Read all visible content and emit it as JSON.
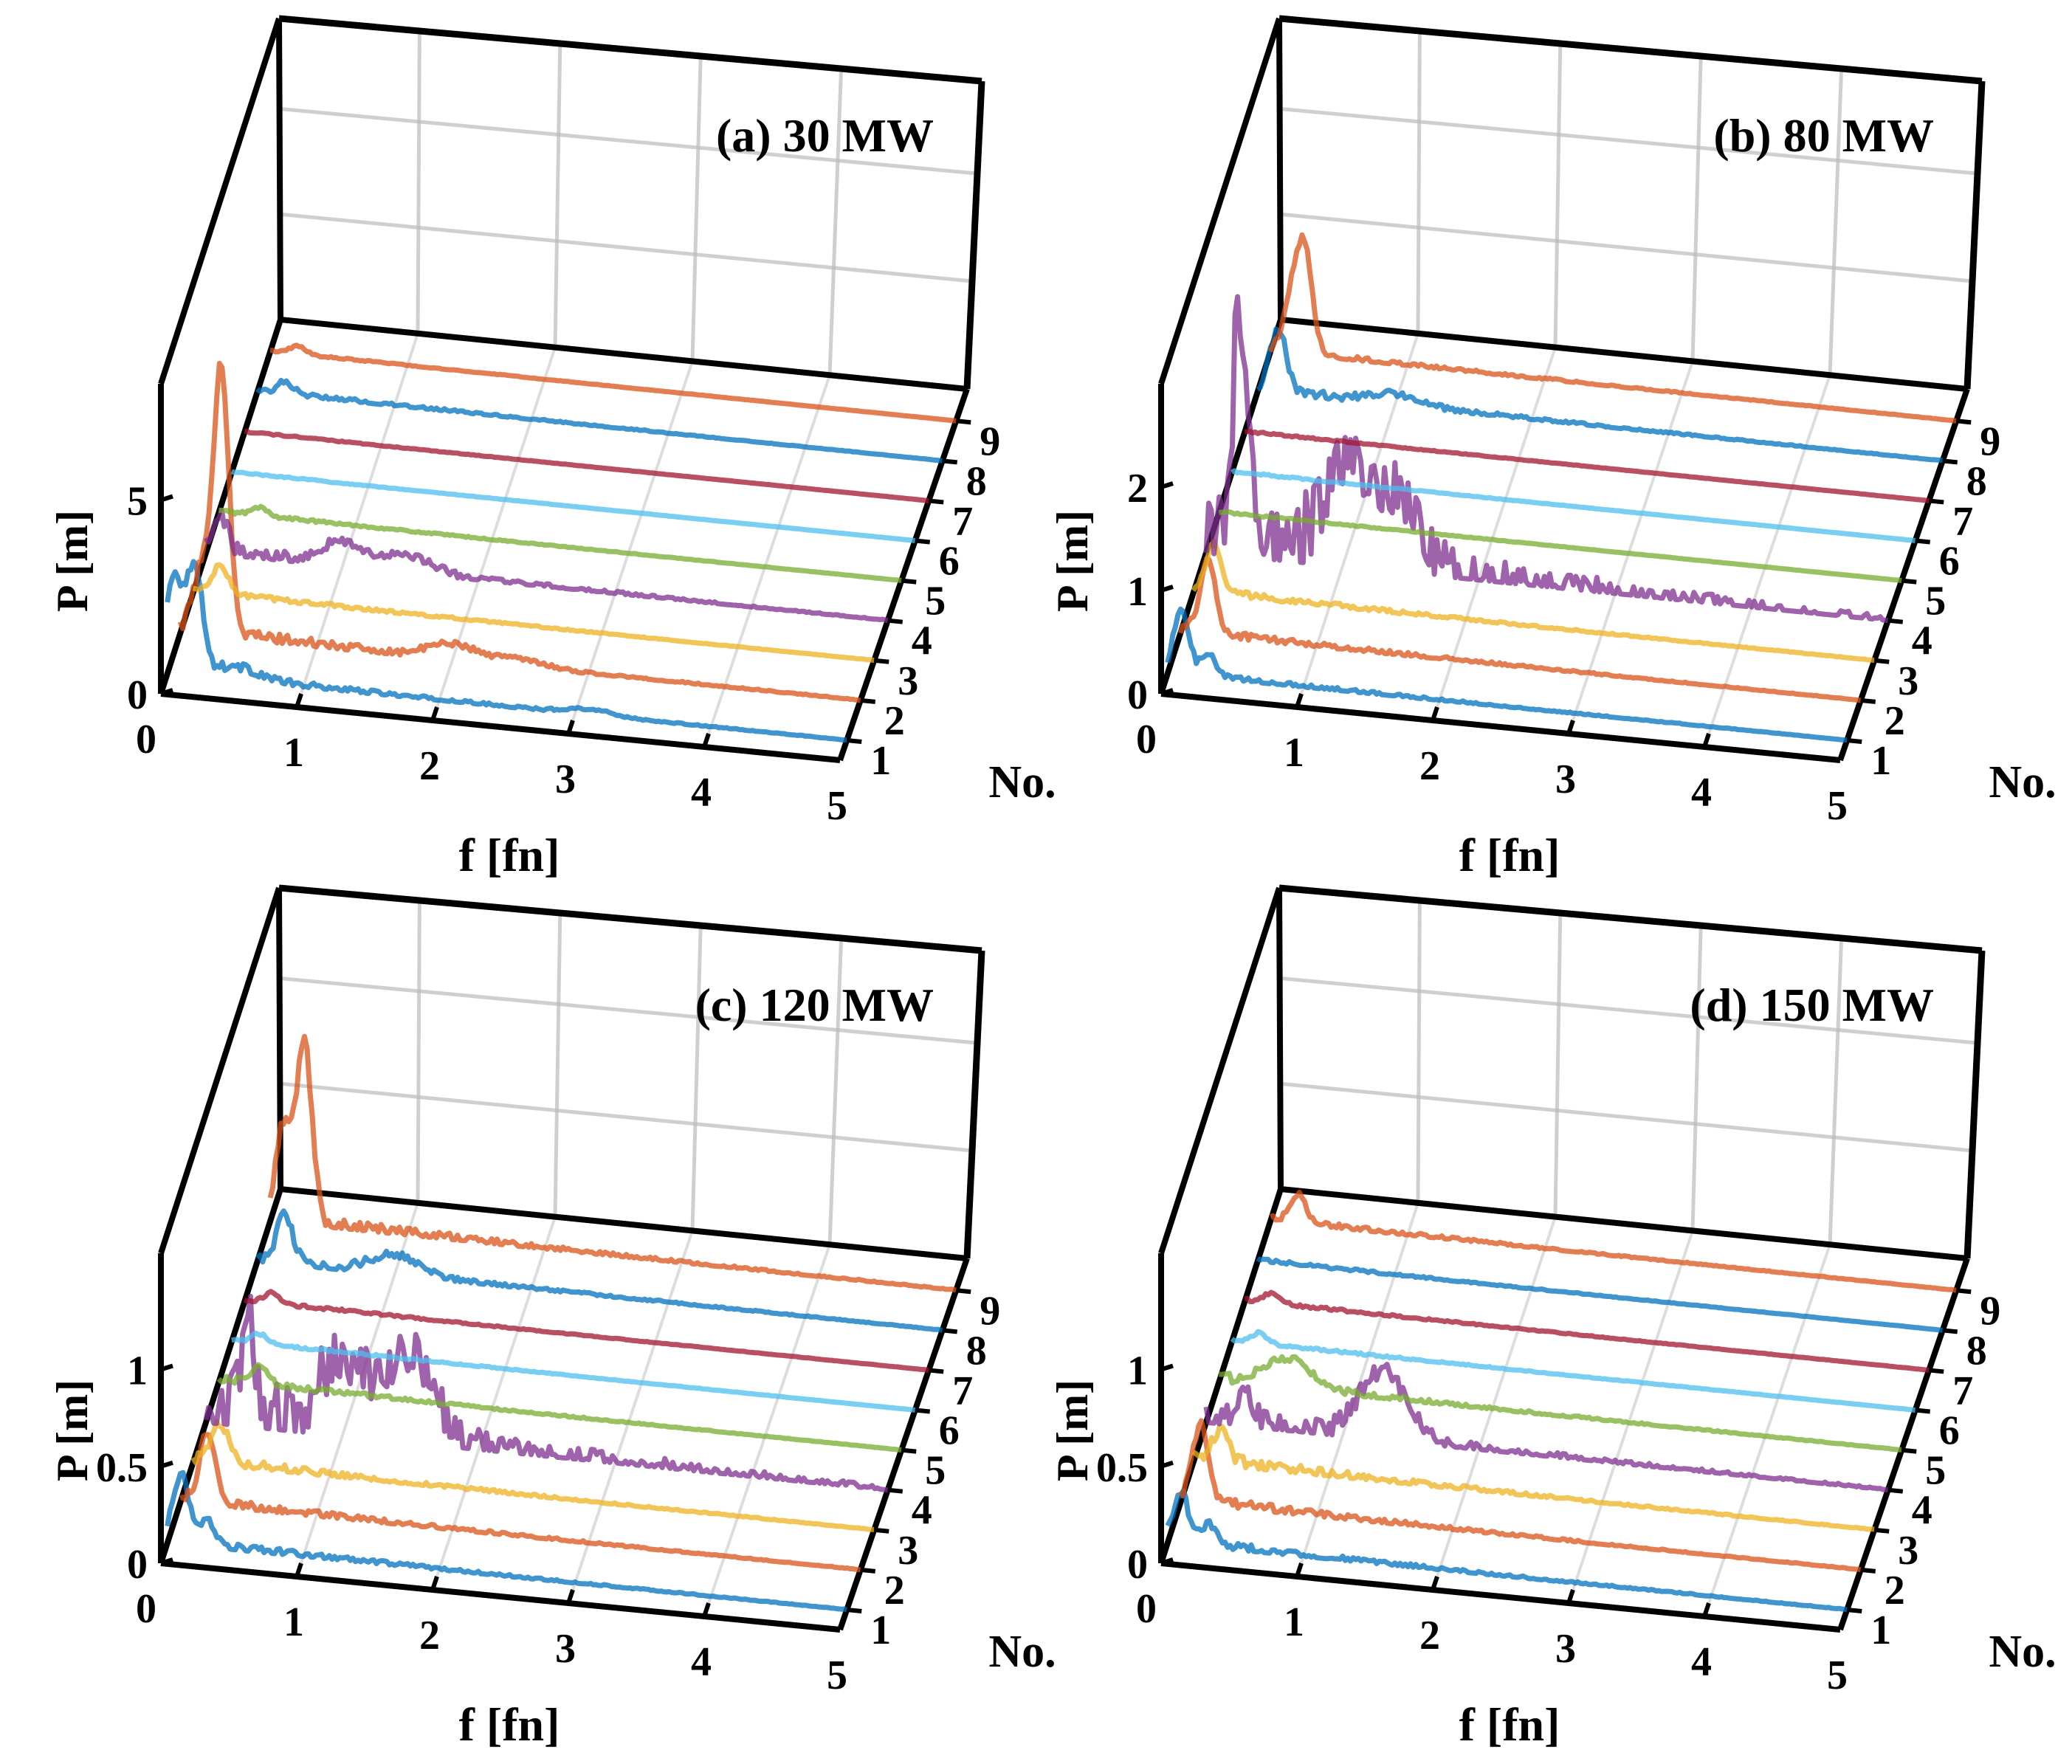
{
  "figure": {
    "colors": {
      "blue": "#0072BD",
      "orange": "#D95319",
      "yellow": "#EDB120",
      "purple": "#7E2F8E",
      "green": "#77AC30",
      "light_blue": "#4DBEEE",
      "crimson": "#A2142F",
      "box": "#000000",
      "grid": "#BBBBBB"
    }
  },
  "chart_data": [
    {
      "type": "line",
      "title": "(a) 30 MW",
      "xlabel": "f [fn]",
      "ylabel": "P [m]",
      "zlabel": "No.",
      "xlim": [
        0,
        5
      ],
      "zlim": [
        0,
        8
      ],
      "x_ticks": [
        "0",
        "1",
        "2",
        "3",
        "4",
        "5"
      ],
      "y_ticks": [
        "1",
        "2",
        "3",
        "4",
        "5",
        "6",
        "7",
        "8",
        "9"
      ],
      "z_ticks": [
        {
          "value": 0,
          "label": "0"
        },
        {
          "value": 5,
          "label": "5"
        }
      ],
      "series": [
        {
          "name": "1",
          "color": "blue",
          "peaks": [
            [
              0.05,
              2.5
            ],
            [
              0.2,
              2.8
            ],
            [
              0.5,
              0.3
            ],
            [
              3.1,
              0.15
            ]
          ],
          "base": 0.1,
          "noise": 0.15
        },
        {
          "name": "2",
          "color": "orange",
          "peaks": [
            [
              0.3,
              7.0
            ],
            [
              0.15,
              1.5
            ],
            [
              2.0,
              0.4
            ],
            [
              2.5,
              0.2
            ]
          ],
          "base": 0.2,
          "noise": 0.2
        },
        {
          "name": "3",
          "color": "yellow",
          "peaks": [
            [
              0.2,
              0.7
            ]
          ],
          "base": 0.1,
          "noise": 0.08
        },
        {
          "name": "4",
          "color": "purple",
          "peaks": [
            [
              0.1,
              1.0
            ],
            [
              1.0,
              0.6
            ],
            [
              1.5,
              0.4
            ]
          ],
          "base": 0.1,
          "noise": 0.25
        },
        {
          "name": "5",
          "color": "green",
          "peaks": [
            [
              0.3,
              0.2
            ]
          ],
          "base": 0.05,
          "noise": 0.05
        },
        {
          "name": "6",
          "color": "light_blue",
          "peaks": [],
          "base": 0.02,
          "noise": 0.02
        },
        {
          "name": "7",
          "color": "crimson",
          "peaks": [],
          "base": 0.02,
          "noise": 0.02
        },
        {
          "name": "8",
          "color": "blue",
          "peaks": [
            [
              0.2,
              0.3
            ]
          ],
          "base": 0.05,
          "noise": 0.08
        },
        {
          "name": "9",
          "color": "orange",
          "peaks": [
            [
              0.2,
              0.2
            ]
          ],
          "base": 0.02,
          "noise": 0.03
        }
      ]
    },
    {
      "type": "line",
      "title": "(b) 80 MW",
      "xlabel": "f [fn]",
      "ylabel": "P [m]",
      "zlabel": "No.",
      "xlim": [
        0,
        5
      ],
      "zlim": [
        0,
        3
      ],
      "x_ticks": [
        "0",
        "1",
        "2",
        "3",
        "4",
        "5"
      ],
      "y_ticks": [
        "1",
        "2",
        "3",
        "4",
        "5",
        "6",
        "7",
        "8",
        "9"
      ],
      "z_ticks": [
        {
          "value": 0,
          "label": "0"
        },
        {
          "value": 1,
          "label": "1"
        },
        {
          "value": 2,
          "label": "2"
        }
      ],
      "series": [
        {
          "name": "1",
          "color": "blue",
          "peaks": [
            [
              0.1,
              0.6
            ],
            [
              0.3,
              0.2
            ]
          ],
          "base": 0.02,
          "noise": 0.04
        },
        {
          "name": "2",
          "color": "orange",
          "peaks": [
            [
              0.2,
              0.7
            ]
          ],
          "base": 0.05,
          "noise": 0.05
        },
        {
          "name": "3",
          "color": "yellow",
          "peaks": [
            [
              0.15,
              0.45
            ]
          ],
          "base": 0.05,
          "noise": 0.04
        },
        {
          "name": "4",
          "color": "purple",
          "peaks": [
            [
              0.25,
              2.3
            ],
            [
              1.0,
              0.9
            ],
            [
              1.4,
              0.7
            ]
          ],
          "base": 0.1,
          "noise": 0.55
        },
        {
          "name": "5",
          "color": "green",
          "peaks": [],
          "base": 0.01,
          "noise": 0.01
        },
        {
          "name": "6",
          "color": "light_blue",
          "peaks": [],
          "base": 0.01,
          "noise": 0.01
        },
        {
          "name": "7",
          "color": "crimson",
          "peaks": [],
          "base": 0.01,
          "noise": 0.01
        },
        {
          "name": "8",
          "color": "blue",
          "peaks": [
            [
              0.15,
              0.6
            ],
            [
              1.0,
              0.1
            ]
          ],
          "base": 0.05,
          "noise": 0.05
        },
        {
          "name": "9",
          "color": "orange",
          "peaks": [
            [
              0.25,
              1.0
            ],
            [
              0.15,
              0.5
            ]
          ],
          "base": 0.02,
          "noise": 0.04
        }
      ]
    },
    {
      "type": "line",
      "title": "(c) 120 MW",
      "xlabel": "f [fn]",
      "ylabel": "P [m]",
      "zlabel": "No.",
      "xlim": [
        0,
        5
      ],
      "zlim": [
        0,
        1.6
      ],
      "x_ticks": [
        "0",
        "1",
        "2",
        "3",
        "4",
        "5"
      ],
      "y_ticks": [
        "1",
        "2",
        "3",
        "4",
        "5",
        "6",
        "7",
        "8",
        "9"
      ],
      "z_ticks": [
        {
          "value": 0,
          "label": "0"
        },
        {
          "value": 0.5,
          "label": "0.5"
        },
        {
          "value": 1,
          "label": "1"
        }
      ],
      "series": [
        {
          "name": "1",
          "color": "blue",
          "peaks": [
            [
              0.1,
              0.35
            ],
            [
              0.3,
              0.12
            ]
          ],
          "base": 0.02,
          "noise": 0.03
        },
        {
          "name": "2",
          "color": "orange",
          "peaks": [
            [
              0.2,
              0.35
            ]
          ],
          "base": 0.03,
          "noise": 0.03
        },
        {
          "name": "3",
          "color": "yellow",
          "peaks": [
            [
              0.2,
              0.2
            ]
          ],
          "base": 0.03,
          "noise": 0.03
        },
        {
          "name": "4",
          "color": "purple",
          "peaks": [
            [
              0.3,
              0.5
            ],
            [
              1.0,
              0.4
            ],
            [
              1.5,
              0.45
            ]
          ],
          "base": 0.05,
          "noise": 0.25
        },
        {
          "name": "5",
          "color": "green",
          "peaks": [
            [
              0.3,
              0.1
            ]
          ],
          "base": 0.02,
          "noise": 0.02
        },
        {
          "name": "6",
          "color": "light_blue",
          "peaks": [
            [
              0.2,
              0.05
            ]
          ],
          "base": 0.01,
          "noise": 0.01
        },
        {
          "name": "7",
          "color": "crimson",
          "peaks": [
            [
              0.2,
              0.05
            ]
          ],
          "base": 0.01,
          "noise": 0.01
        },
        {
          "name": "8",
          "color": "blue",
          "peaks": [
            [
              0.2,
              0.25
            ],
            [
              1.0,
              0.1
            ]
          ],
          "base": 0.02,
          "noise": 0.03
        },
        {
          "name": "9",
          "color": "orange",
          "peaks": [
            [
              0.25,
              0.9
            ],
            [
              0.1,
              0.5
            ]
          ],
          "base": 0.02,
          "noise": 0.05
        }
      ]
    },
    {
      "type": "line",
      "title": "(d) 150 MW",
      "xlabel": "f [fn]",
      "ylabel": "P [m]",
      "zlabel": "No.",
      "xlim": [
        0,
        5
      ],
      "zlim": [
        0,
        1.6
      ],
      "x_ticks": [
        "0",
        "1",
        "2",
        "3",
        "4",
        "5"
      ],
      "y_ticks": [
        "1",
        "2",
        "3",
        "4",
        "5",
        "6",
        "7",
        "8",
        "9"
      ],
      "z_ticks": [
        {
          "value": 0,
          "label": "0"
        },
        {
          "value": 0.5,
          "label": "0.5"
        },
        {
          "value": 1,
          "label": "1"
        }
      ],
      "series": [
        {
          "name": "1",
          "color": "blue",
          "peaks": [
            [
              0.1,
              0.25
            ],
            [
              0.3,
              0.1
            ]
          ],
          "base": 0.02,
          "noise": 0.03
        },
        {
          "name": "2",
          "color": "orange",
          "peaks": [
            [
              0.15,
              0.4
            ]
          ],
          "base": 0.03,
          "noise": 0.03
        },
        {
          "name": "3",
          "color": "yellow",
          "peaks": [
            [
              0.2,
              0.15
            ]
          ],
          "base": 0.03,
          "noise": 0.04
        },
        {
          "name": "4",
          "color": "purple",
          "peaks": [
            [
              0.3,
              0.15
            ],
            [
              1.3,
              0.35
            ]
          ],
          "base": 0.03,
          "noise": 0.08
        },
        {
          "name": "5",
          "color": "green",
          "peaks": [
            [
              0.5,
              0.15
            ]
          ],
          "base": 0.02,
          "noise": 0.03
        },
        {
          "name": "6",
          "color": "light_blue",
          "peaks": [
            [
              0.2,
              0.05
            ]
          ],
          "base": 0.01,
          "noise": 0.01
        },
        {
          "name": "7",
          "color": "crimson",
          "peaks": [
            [
              0.2,
              0.05
            ]
          ],
          "base": 0.01,
          "noise": 0.01
        },
        {
          "name": "8",
          "color": "blue",
          "peaks": [],
          "base": 0.01,
          "noise": 0.01
        },
        {
          "name": "9",
          "color": "orange",
          "peaks": [
            [
              0.2,
              0.15
            ]
          ],
          "base": 0.01,
          "noise": 0.02
        }
      ]
    }
  ]
}
